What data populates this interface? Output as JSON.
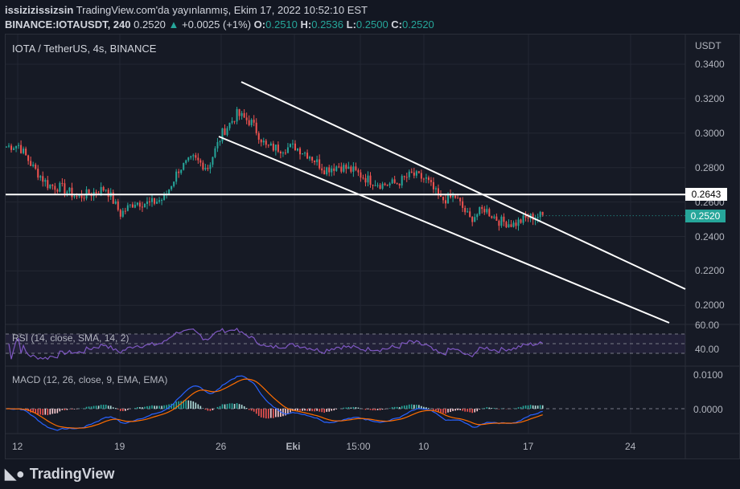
{
  "header": {
    "user": "issizizissizsin",
    "published": "TradingView.com'da yayınlanmış, Ekim 17, 2022 10:52:10 EST",
    "symbol": "BINANCE:IOTAUSDT, 240",
    "last": "0.2520",
    "change": "+0.0025 (+1%)",
    "o_label": "O:",
    "o": "0.2510",
    "h_label": "H:",
    "h": "0.2536",
    "l_label": "L:",
    "l": "0.2500",
    "c_label": "C:",
    "c": "0.2520"
  },
  "chart": {
    "title": "IOTA / TetherUS, 4s, BINANCE",
    "currency": "USDT",
    "price_ticks": [
      "0.3400",
      "0.3200",
      "0.3000",
      "0.2800",
      "0.2600",
      "0.2400",
      "0.2200",
      "0.2000"
    ],
    "level_label": "0.2643",
    "last_label": "0.2520",
    "rsi_label": "RSI (14, close, SMA, 14, 2)",
    "rsi_ticks": [
      "60.00",
      "40.00"
    ],
    "macd_label": "MACD (12, 26, close, 9, EMA, EMA)",
    "macd_ticks": [
      "0.0100",
      "0.0000"
    ],
    "time_ticks": [
      "12",
      "19",
      "26",
      "Eki",
      "15:00",
      "10",
      "17",
      "24"
    ],
    "colors": {
      "up": "#26a69a",
      "down": "#ef5350",
      "rsi": "#7e57c2",
      "macd": "#2962ff",
      "signal": "#ff6d00",
      "drawing": "#ffffff"
    }
  },
  "chart_data": {
    "type": "candlestick",
    "symbol": "IOTAUSDT",
    "interval": "4h",
    "daily_close": [
      0.292,
      0.293,
      0.28,
      0.27,
      0.268,
      0.263,
      0.265,
      0.268,
      0.253,
      0.26,
      0.259,
      0.262,
      0.279,
      0.285,
      0.28,
      0.3,
      0.311,
      0.306,
      0.292,
      0.291,
      0.292,
      0.287,
      0.279,
      0.281,
      0.278,
      0.273,
      0.27,
      0.271,
      0.276,
      0.273,
      0.261,
      0.263,
      0.25,
      0.256,
      0.249,
      0.247,
      0.251,
      0.252
    ],
    "horizontal_level": 0.2643,
    "ylim": [
      0.19,
      0.35
    ]
  },
  "footer": {
    "brand": "TradingView"
  }
}
